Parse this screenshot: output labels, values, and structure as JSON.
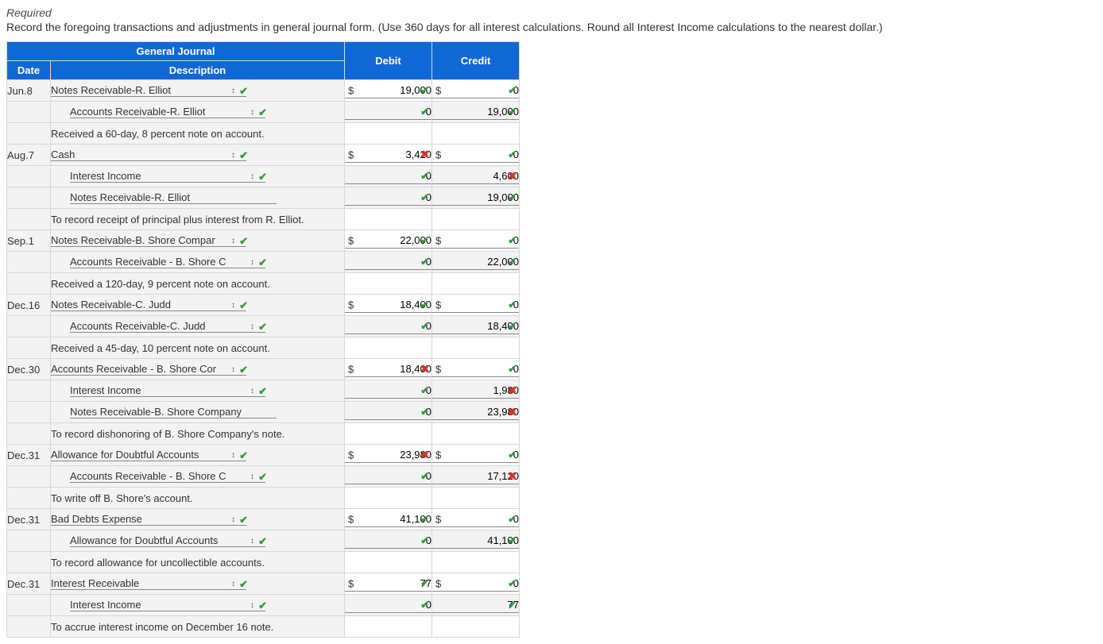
{
  "heading": {
    "required": "Required",
    "prompt": "Record the foregoing transactions and adjustments in general journal form. (Use 360 days for all interest calculations. Round all Interest Income calculations to the nearest dollar.)"
  },
  "table": {
    "title": "General Journal",
    "headers": {
      "date": "Date",
      "description": "Description",
      "debit": "Debit",
      "credit": "Credit"
    }
  },
  "icons": {
    "updown": "↕",
    "check": "✔",
    "cross": "✖"
  },
  "rows": [
    {
      "date": "Jun.8",
      "kind": "dd",
      "indent": 0,
      "desc": "Notes Receivable-R. Elliot",
      "mark": "ok",
      "debit": {
        "cur": "$",
        "val": "19,000",
        "mark": "ok"
      },
      "credit": {
        "cur": "$",
        "val": "0",
        "mark": "ok"
      }
    },
    {
      "date": "",
      "kind": "dd",
      "indent": 1,
      "desc": "Accounts Receivable-R. Elliot",
      "mark": "ok",
      "debit": {
        "val": "0",
        "mark": "ok"
      },
      "credit": {
        "val": "19,000",
        "mark": "ok"
      }
    },
    {
      "date": "",
      "kind": "memo",
      "indent": 0,
      "desc": "Received a 60-day, 8 percent note on account."
    },
    {
      "date": "Aug.7",
      "kind": "dd",
      "indent": 0,
      "desc": "Cash",
      "mark": "ok",
      "debit": {
        "cur": "$",
        "val": "3,420",
        "mark": "bad"
      },
      "credit": {
        "cur": "$",
        "val": "0",
        "mark": "ok"
      }
    },
    {
      "date": "",
      "kind": "dd",
      "indent": 1,
      "desc": "Interest Income",
      "mark": "ok",
      "debit": {
        "val": "0",
        "mark": "ok"
      },
      "credit": {
        "val": "4,600",
        "mark": "bad"
      }
    },
    {
      "date": "",
      "kind": "plain",
      "indent": 1,
      "desc": "Notes Receivable-R. Elliot",
      "debit": {
        "val": "0",
        "mark": "ok"
      },
      "credit": {
        "val": "19,000",
        "mark": "ok"
      }
    },
    {
      "date": "",
      "kind": "memo",
      "indent": 0,
      "desc": "To record receipt of principal plus interest from R. Elliot."
    },
    {
      "date": "Sep.1",
      "kind": "dd",
      "indent": 0,
      "desc": "Notes Receivable-B. Shore Compar",
      "mark": "ok",
      "debit": {
        "cur": "$",
        "val": "22,000",
        "mark": "ok"
      },
      "credit": {
        "cur": "$",
        "val": "0",
        "mark": "ok"
      }
    },
    {
      "date": "",
      "kind": "dd",
      "indent": 1,
      "desc": "Accounts Receivable - B. Shore C",
      "mark": "ok",
      "debit": {
        "val": "0",
        "mark": "ok"
      },
      "credit": {
        "val": "22,000",
        "mark": "ok"
      }
    },
    {
      "date": "",
      "kind": "memo",
      "indent": 0,
      "desc": "Received a 120-day, 9 percent note on account."
    },
    {
      "date": "Dec.16",
      "kind": "dd",
      "indent": 0,
      "desc": "Notes Receivable-C. Judd",
      "mark": "ok",
      "debit": {
        "cur": "$",
        "val": "18,400",
        "mark": "ok"
      },
      "credit": {
        "cur": "$",
        "val": "0",
        "mark": "ok"
      }
    },
    {
      "date": "",
      "kind": "dd",
      "indent": 1,
      "desc": "Accounts Receivable-C. Judd",
      "mark": "ok",
      "debit": {
        "val": "0",
        "mark": "ok"
      },
      "credit": {
        "val": "18,400",
        "mark": "ok"
      }
    },
    {
      "date": "",
      "kind": "memo",
      "indent": 0,
      "desc": "Received a 45-day, 10 percent note on account."
    },
    {
      "date": "Dec.30",
      "kind": "dd",
      "indent": 0,
      "desc": "Accounts Receivable - B. Shore Cor",
      "mark": "ok",
      "debit": {
        "cur": "$",
        "val": "18,400",
        "mark": "bad"
      },
      "credit": {
        "cur": "$",
        "val": "0",
        "mark": "ok"
      }
    },
    {
      "date": "",
      "kind": "dd",
      "indent": 1,
      "desc": "Interest Income",
      "mark": "ok",
      "debit": {
        "val": "0",
        "mark": "ok"
      },
      "credit": {
        "val": "1,980",
        "mark": "bad"
      }
    },
    {
      "date": "",
      "kind": "plain",
      "indent": 1,
      "desc": "Notes Receivable-B. Shore Company",
      "debit": {
        "val": "0",
        "mark": "ok"
      },
      "credit": {
        "val": "23,980",
        "mark": "bad"
      }
    },
    {
      "date": "",
      "kind": "memo",
      "indent": 0,
      "desc": "To record dishonoring of B. Shore Company's note."
    },
    {
      "date": "Dec.31",
      "kind": "dd",
      "indent": 0,
      "desc": "Allowance for Doubtful Accounts",
      "mark": "ok",
      "debit": {
        "cur": "$",
        "val": "23,980",
        "mark": "bad"
      },
      "credit": {
        "cur": "$",
        "val": "0",
        "mark": "ok"
      }
    },
    {
      "date": "",
      "kind": "dd",
      "indent": 1,
      "desc": "Accounts Receivable - B. Shore C",
      "mark": "ok",
      "debit": {
        "val": "0",
        "mark": "ok"
      },
      "credit": {
        "val": "17,120",
        "mark": "bad"
      }
    },
    {
      "date": "",
      "kind": "memo",
      "indent": 0,
      "desc": "To write off B. Shore's account."
    },
    {
      "date": "Dec.31",
      "kind": "dd",
      "indent": 0,
      "desc": "Bad Debts Expense",
      "mark": "ok",
      "debit": {
        "cur": "$",
        "val": "41,100",
        "mark": "ok"
      },
      "credit": {
        "cur": "$",
        "val": "0",
        "mark": "ok"
      }
    },
    {
      "date": "",
      "kind": "dd",
      "indent": 1,
      "desc": "Allowance for Doubtful Accounts",
      "mark": "ok",
      "debit": {
        "val": "0",
        "mark": "ok"
      },
      "credit": {
        "val": "41,100",
        "mark": "ok"
      }
    },
    {
      "date": "",
      "kind": "memo",
      "indent": 0,
      "desc": "To record allowance for uncollectible accounts."
    },
    {
      "date": "Dec.31",
      "kind": "dd",
      "indent": 0,
      "desc": "Interest Receivable",
      "mark": "ok",
      "debit": {
        "cur": "$",
        "val": "77",
        "mark": "ok"
      },
      "credit": {
        "cur": "$",
        "val": "0",
        "mark": "ok"
      }
    },
    {
      "date": "",
      "kind": "dd",
      "indent": 1,
      "desc": "Interest Income",
      "mark": "ok",
      "debit": {
        "val": "0",
        "mark": "ok"
      },
      "credit": {
        "val": "77",
        "mark": "ok"
      }
    },
    {
      "date": "",
      "kind": "memo",
      "indent": 0,
      "desc": "To accrue interest income on December 16 note."
    }
  ]
}
